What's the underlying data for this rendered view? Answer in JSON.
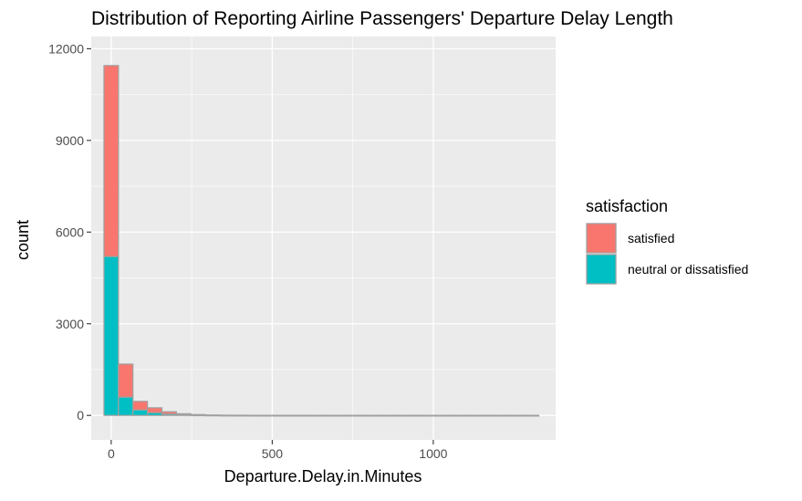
{
  "chart_data": {
    "type": "bar",
    "title": "Distribution of Reporting Airline Passengers' Departure Delay Length",
    "xlabel": "Departure.Delay.in.Minutes",
    "ylabel": "count",
    "xlim": [
      -62,
      1380
    ],
    "ylim": [
      -800,
      12400
    ],
    "x_ticks": [
      0,
      500,
      1000
    ],
    "x_tick_labels": [
      "0",
      "500",
      "1000"
    ],
    "y_ticks": [
      0,
      3000,
      6000,
      9000,
      12000
    ],
    "y_tick_labels": [
      "0",
      "3000",
      "6000",
      "9000",
      "12000"
    ],
    "bin_width": 45,
    "bin_centers": [
      0,
      45,
      90,
      135,
      180,
      225,
      270,
      315,
      360,
      405,
      450,
      495,
      540,
      585,
      630,
      675,
      720,
      765,
      810,
      855,
      900,
      945,
      990,
      1035,
      1080,
      1125,
      1170,
      1215,
      1260,
      1305
    ],
    "stacking": "stacked",
    "series": [
      {
        "name": "neutral or dissatisfied",
        "color": "#00BFC4",
        "values": [
          5200,
          600,
          180,
          90,
          45,
          20,
          10,
          5,
          3,
          2,
          1,
          1,
          0,
          0,
          0,
          0,
          0,
          0,
          0,
          0,
          0,
          0,
          0,
          0,
          0,
          0,
          0,
          0,
          0,
          0
        ]
      },
      {
        "name": "satisfied",
        "color": "#F8766D",
        "values": [
          6250,
          1080,
          280,
          160,
          75,
          35,
          18,
          8,
          4,
          3,
          2,
          1,
          1,
          1,
          0,
          0,
          0,
          0,
          0,
          0,
          0,
          0,
          0,
          0,
          0,
          0,
          0,
          0,
          0,
          0
        ]
      }
    ],
    "grid": true,
    "legend": {
      "title": "satisfaction",
      "position": "right",
      "entries": [
        {
          "label": "satisfied",
          "color": "#F8766D"
        },
        {
          "label": "neutral or dissatisfied",
          "color": "#00BFC4"
        }
      ]
    },
    "panel_background": "#EBEBEB",
    "grid_color": "#FFFFFF",
    "bar_outline": "#A0A0A0"
  }
}
